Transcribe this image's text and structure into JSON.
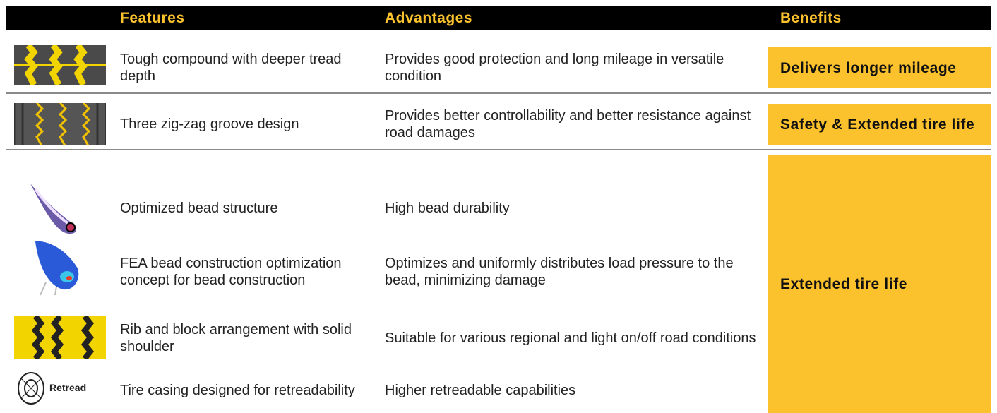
{
  "header": {
    "columns": [
      "Features",
      "Advantages",
      "Benefits"
    ]
  },
  "groups": [
    {
      "benefit": "Delivers longer mileage",
      "rows": [
        {
          "feature": "Tough compound with deeper tread depth",
          "advantage": "Provides good protection and long mileage in versatile condition"
        }
      ]
    },
    {
      "benefit": "Safety & Extended tire life",
      "rows": [
        {
          "feature": "Three zig-zag groove design",
          "advantage": "Provides better controllability and better resistance against road damages"
        }
      ]
    },
    {
      "benefit": "Extended tire life",
      "rows": [
        {
          "feature": "Optimized bead structure",
          "advantage": "High bead durability"
        },
        {
          "feature": "FEA bead construction optimization concept for bead construction",
          "advantage": "Optimizes and uniformly distributes load pressure to the bead, minimizing damage"
        },
        {
          "feature": "Rib and block arrangement with solid shoulder",
          "advantage": "Suitable for various regional and light on/off road conditions"
        },
        {
          "feature": "Tire casing designed for retreadability",
          "advantage": "Higher retreadable capabilities",
          "icon_label": "Retread"
        }
      ]
    }
  ]
}
